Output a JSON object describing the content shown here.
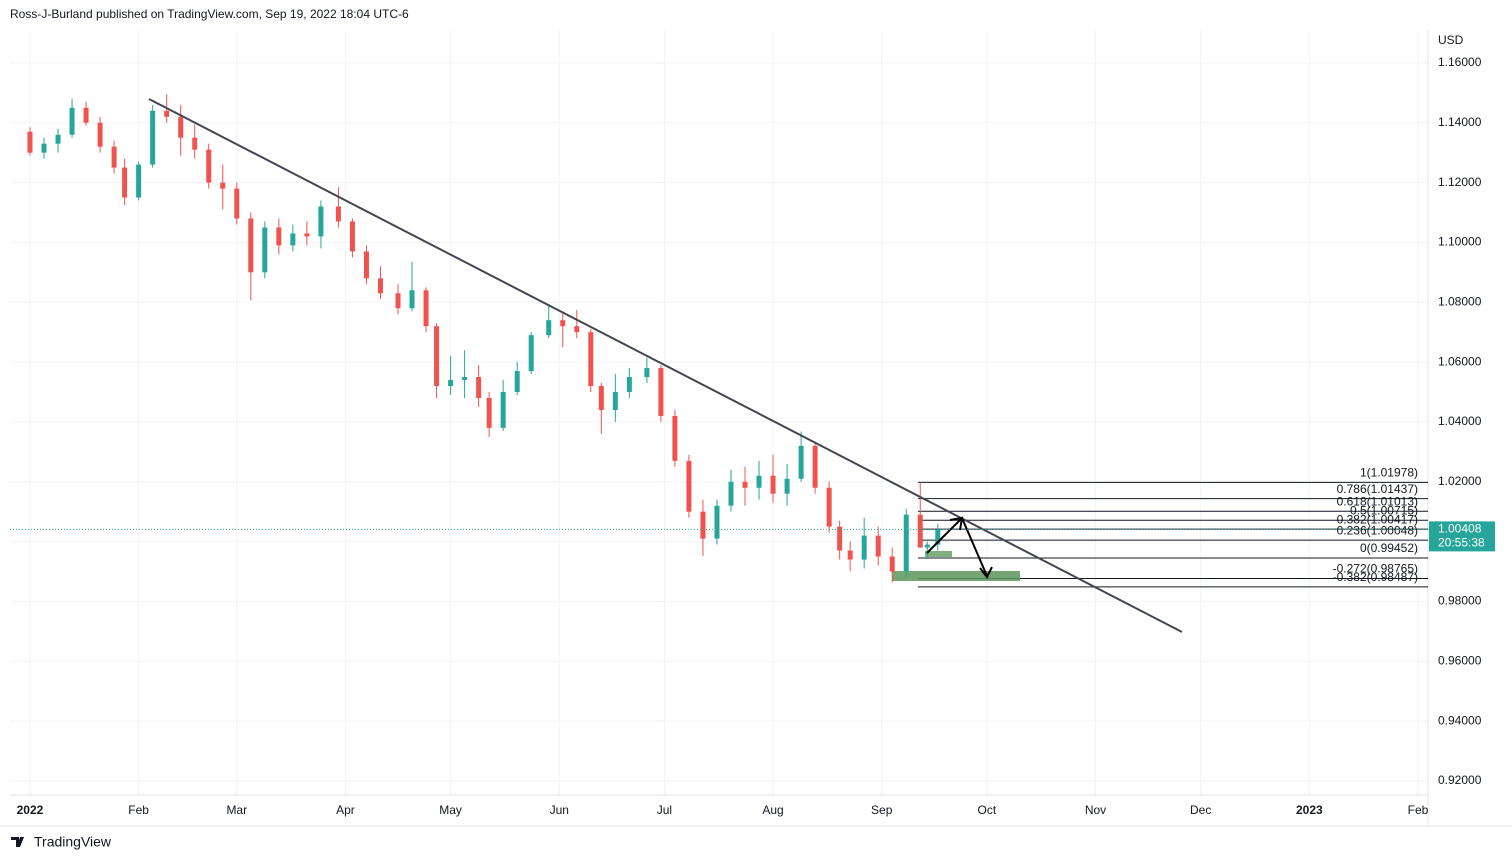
{
  "chart_data": {
    "type": "candlestick",
    "title": "Ross-J-Burland published on TradingView.com, Sep 19, 2022 18:04 UTC-6",
    "y_axis_label": "USD",
    "brand": "TradingView",
    "up_color": "#26a69a",
    "down_color": "#ef5350",
    "grid": true,
    "xlim": [
      -5.7,
      398
    ],
    "xticks": [
      {
        "value": 0,
        "label": "2022"
      },
      {
        "value": 31,
        "label": "Feb"
      },
      {
        "value": 59,
        "label": "Mar"
      },
      {
        "value": 90,
        "label": "Apr"
      },
      {
        "value": 120,
        "label": "May"
      },
      {
        "value": 151,
        "label": "Jun"
      },
      {
        "value": 181,
        "label": "Jul"
      },
      {
        "value": 212,
        "label": "Aug"
      },
      {
        "value": 243,
        "label": "Sep"
      },
      {
        "value": 273,
        "label": "Oct"
      },
      {
        "value": 304,
        "label": "Nov"
      },
      {
        "value": 334,
        "label": "Dec"
      },
      {
        "value": 365,
        "label": "2023"
      },
      {
        "value": 396,
        "label": "Feb"
      }
    ],
    "ylim": [
      0.9153,
      1.171
    ],
    "yticks": [
      {
        "value": 0.92,
        "label": "0.92000"
      },
      {
        "value": 0.94,
        "label": "0.94000"
      },
      {
        "value": 0.96,
        "label": "0.96000"
      },
      {
        "value": 0.98,
        "label": "0.98000"
      },
      {
        "value": 1.0,
        "label": "1.00000"
      },
      {
        "value": 1.02,
        "label": "1.02000"
      },
      {
        "value": 1.04,
        "label": "1.04000"
      },
      {
        "value": 1.06,
        "label": "1.06000"
      },
      {
        "value": 1.08,
        "label": "1.08000"
      },
      {
        "value": 1.1,
        "label": "1.10000"
      },
      {
        "value": 1.12,
        "label": "1.12000"
      },
      {
        "value": 1.14,
        "label": "1.14000"
      },
      {
        "value": 1.16,
        "label": "1.16000"
      }
    ],
    "x": [
      0,
      4,
      8,
      12,
      16,
      20,
      24,
      27,
      31,
      35,
      39,
      43,
      47,
      51,
      55,
      59,
      63,
      67,
      71,
      75,
      79,
      83,
      88,
      92,
      96,
      100,
      105,
      109,
      113,
      116,
      120,
      124,
      128,
      131,
      135,
      139,
      143,
      148,
      152,
      156,
      160,
      163,
      167,
      171,
      176,
      180,
      184,
      188,
      192,
      196,
      200,
      204,
      208,
      212,
      216,
      220,
      224,
      228,
      231,
      234,
      238,
      242,
      246,
      250,
      254,
      256,
      259
    ],
    "open": [
      1.137,
      1.13,
      1.133,
      1.136,
      1.145,
      1.14,
      1.132,
      1.125,
      1.115,
      1.126,
      1.144,
      1.142,
      1.135,
      1.131,
      1.12,
      1.118,
      1.108,
      1.09,
      1.105,
      1.099,
      1.103,
      1.102,
      1.112,
      1.107,
      1.097,
      1.088,
      1.083,
      1.078,
      1.084,
      1.072,
      1.052,
      1.054,
      1.055,
      1.048,
      1.038,
      1.05,
      1.057,
      1.069,
      1.074,
      1.072,
      1.07,
      1.052,
      1.044,
      1.05,
      1.055,
      1.058,
      1.042,
      1.027,
      1.01,
      1.001,
      1.012,
      1.02,
      1.018,
      1.022,
      1.016,
      1.021,
      1.032,
      1.018,
      1.005,
      0.997,
      0.994,
      1.002,
      0.995,
      0.99,
      1.009,
      0.998,
      0.999
    ],
    "high": [
      1.1385,
      1.135,
      1.138,
      1.148,
      1.147,
      1.142,
      1.134,
      1.128,
      1.127,
      1.146,
      1.1495,
      1.146,
      1.1395,
      1.133,
      1.126,
      1.12,
      1.11,
      1.107,
      1.108,
      1.106,
      1.107,
      1.114,
      1.1185,
      1.108,
      1.099,
      1.092,
      1.086,
      1.0935,
      1.085,
      1.073,
      1.062,
      1.064,
      1.059,
      1.05,
      1.054,
      1.06,
      1.07,
      1.0787,
      1.077,
      1.0774,
      1.071,
      1.053,
      1.056,
      1.058,
      1.0615,
      1.059,
      1.044,
      1.029,
      1.014,
      1.014,
      1.024,
      1.025,
      1.027,
      1.029,
      1.026,
      1.0368,
      1.033,
      1.02,
      1.007,
      1.0,
      1.008,
      1.005,
      0.998,
      1.011,
      1.0198,
      1.0,
      1.006
    ],
    "low": [
      1.129,
      1.128,
      1.13,
      1.135,
      1.139,
      1.13,
      1.123,
      1.1125,
      1.114,
      1.125,
      1.14,
      1.129,
      1.128,
      1.118,
      1.111,
      1.106,
      1.0806,
      1.088,
      1.096,
      1.097,
      1.099,
      1.098,
      1.105,
      1.095,
      1.086,
      1.081,
      1.076,
      1.077,
      1.07,
      1.048,
      1.049,
      1.048,
      1.045,
      1.035,
      1.037,
      1.049,
      1.056,
      1.068,
      1.065,
      1.068,
      1.05,
      1.036,
      1.04,
      1.048,
      1.053,
      1.04,
      1.025,
      1.008,
      0.9952,
      0.999,
      1.01,
      1.012,
      1.014,
      1.013,
      1.012,
      1.02,
      1.016,
      1.003,
      0.994,
      0.9901,
      0.991,
      0.992,
      0.9864,
      0.988,
      0.998,
      0.9945,
      0.997
    ],
    "close": [
      1.13,
      1.133,
      1.136,
      1.145,
      1.14,
      1.132,
      1.125,
      1.115,
      1.126,
      1.144,
      1.142,
      1.135,
      1.131,
      1.12,
      1.118,
      1.108,
      1.09,
      1.105,
      1.099,
      1.103,
      1.102,
      1.112,
      1.107,
      1.097,
      1.088,
      1.083,
      1.078,
      1.084,
      1.072,
      1.052,
      1.054,
      1.055,
      1.048,
      1.038,
      1.05,
      1.057,
      1.069,
      1.074,
      1.072,
      1.07,
      1.052,
      1.044,
      1.05,
      1.055,
      1.058,
      1.042,
      1.027,
      1.01,
      1.001,
      1.012,
      1.02,
      1.018,
      1.022,
      1.016,
      1.021,
      1.032,
      1.018,
      1.005,
      0.997,
      0.994,
      1.002,
      0.995,
      0.99,
      1.009,
      0.998,
      0.999,
      1.0041
    ],
    "last_price": 1.00408,
    "countdown": "20:55:38",
    "fib_levels": [
      {
        "value": 1.01978,
        "label": "1(1.01978)"
      },
      {
        "value": 1.01437,
        "label": "0.786(1.01437)"
      },
      {
        "value": 1.01013,
        "label": "0.618(1.01013)"
      },
      {
        "value": 1.00715,
        "label": "0.5(1.00715)"
      },
      {
        "value": 1.00417,
        "label": "0.382(1.00417)"
      },
      {
        "value": 1.00048,
        "label": "0.236(1.00048)"
      },
      {
        "value": 0.99452,
        "label": "0(0.99452)"
      },
      {
        "value": 0.98765,
        "label": "-0.272(0.98765)"
      },
      {
        "value": 0.98487,
        "label": "-0.382(0.98487)"
      }
    ]
  }
}
